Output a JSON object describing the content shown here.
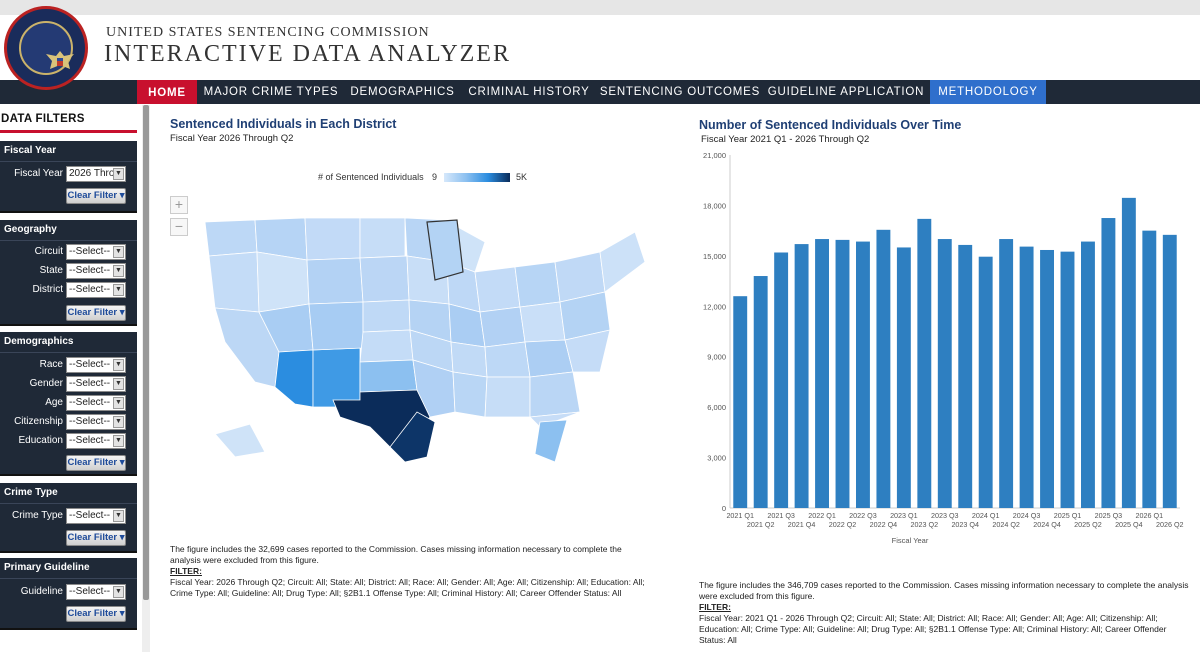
{
  "header": {
    "org": "UNITED STATES SENTENCING COMMISSION",
    "title": "INTERACTIVE DATA ANALYZER",
    "seal_icon": "commission-seal-icon"
  },
  "nav": {
    "items": [
      {
        "label": "HOME",
        "active": true
      },
      {
        "label": "MAJOR CRIME TYPES"
      },
      {
        "label": "DEMOGRAPHICS"
      },
      {
        "label": "CRIMINAL HISTORY"
      },
      {
        "label": "SENTENCING OUTCOMES"
      },
      {
        "label": "GUIDELINE APPLICATION"
      },
      {
        "label": "METHODOLOGY",
        "highlight": true
      }
    ]
  },
  "sidebar": {
    "title": "DATA FILTERS",
    "clear_label": "Clear Filter",
    "panels": {
      "fiscal": {
        "title": "Fiscal Year",
        "rows": [
          {
            "label": "Fiscal Year",
            "value": "2026 Thro"
          }
        ]
      },
      "geography": {
        "title": "Geography",
        "rows": [
          {
            "label": "Circuit",
            "value": "--Select--"
          },
          {
            "label": "State",
            "value": "--Select--"
          },
          {
            "label": "District",
            "value": "--Select--"
          }
        ]
      },
      "demographics": {
        "title": "Demographics",
        "rows": [
          {
            "label": "Race",
            "value": "--Select--"
          },
          {
            "label": "Gender",
            "value": "--Select--"
          },
          {
            "label": "Age",
            "value": "--Select--"
          },
          {
            "label": "Citizenship",
            "value": "--Select--"
          },
          {
            "label": "Education",
            "value": "--Select--"
          }
        ]
      },
      "crime": {
        "title": "Crime Type",
        "rows": [
          {
            "label": "Crime Type",
            "value": "--Select--"
          }
        ]
      },
      "guideline": {
        "title": "Primary Guideline",
        "rows": [
          {
            "label": "Guideline",
            "value": "--Select--"
          }
        ]
      }
    }
  },
  "map_section": {
    "title": "Sentenced Individuals in Each District",
    "subtitle": "Fiscal Year 2026 Through Q2",
    "legend_title": "# of Sentenced Individuals",
    "legend_min": "9",
    "legend_max": "5K",
    "zoom_in": "+",
    "zoom_out": "−",
    "note": "The figure includes the 32,699 cases reported to the Commission. Cases missing information necessary to complete the analysis were excluded from this figure.",
    "filter_label": "FILTER:",
    "filter_text": "Fiscal Year: 2026 Through Q2; Circuit: All; State: All; District: All; Race: All; Gender: All; Age: All; Citizenship: All; Education: All; Crime Type: All; Guideline: All; Drug Type: All; §2B1.1 Offense Type: All; Criminal History: All; Career Offender Status: All",
    "colors": {
      "light": "#cfe3f8",
      "mid": "#8cc0f0",
      "strong": "#2b8de0",
      "dark": "#0b2c5a"
    }
  },
  "chart_section": {
    "title": "Number of Sentenced Individuals Over Time",
    "subtitle": "Fiscal Year 2021 Q1 - 2026 Through Q2",
    "note": "The figure includes the 346,709 cases reported to the Commission. Cases missing information necessary to complete the analysis were excluded from this figure.",
    "filter_label": "FILTER:",
    "filter_text": "Fiscal Year: 2021 Q1 - 2026 Through Q2; Circuit: All; State: All; District: All; Race: All; Gender: All; Age: All; Citizenship: All; Education: All; Crime Type: All; Guideline: All; Drug Type: All; §2B1.1 Offense Type: All; Criminal History: All; Career Offender Status: All"
  },
  "chart_data": {
    "type": "bar",
    "categories": [
      "2021 Q1",
      "2021 Q2",
      "2021 Q3",
      "2021 Q4",
      "2022 Q1",
      "2022 Q2",
      "2022 Q3",
      "2022 Q4",
      "2023 Q1",
      "2023 Q2",
      "2023 Q3",
      "2023 Q4",
      "2024 Q1",
      "2024 Q2",
      "2024 Q3",
      "2024 Q4",
      "2025 Q1",
      "2025 Q2",
      "2025 Q3",
      "2025 Q4",
      "2026 Q1",
      "2026 Q2"
    ],
    "values": [
      12600,
      13800,
      15200,
      15700,
      16000,
      15950,
      15850,
      16550,
      15500,
      17200,
      16000,
      15650,
      14950,
      16000,
      15550,
      15350,
      15250,
      15850,
      17250,
      18450,
      16500,
      16250
    ],
    "xlabel": "Fiscal Year",
    "ylabel": "",
    "ylim": [
      0,
      21000
    ],
    "yticks": [
      0,
      3000,
      6000,
      9000,
      12000,
      15000,
      18000,
      21000
    ],
    "ytick_labels": [
      "0",
      "3,000",
      "6,000",
      "9,000",
      "12,000",
      "15,000",
      "18,000",
      "21,000"
    ],
    "bar_color": "#2e7fc1",
    "grid": false
  }
}
